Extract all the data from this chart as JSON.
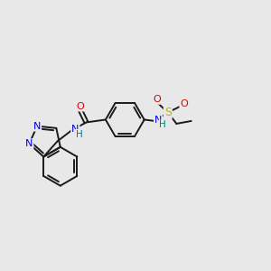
{
  "bg_color": "#e8e8e8",
  "bond_color": "#1a1a1a",
  "n_color": "#0000ee",
  "o_color": "#dd0000",
  "s_color": "#bbbb00",
  "nh_color": "#008080",
  "lw": 1.4,
  "figsize": [
    3.0,
    3.0
  ],
  "dpi": 100,
  "xlim": [
    0,
    10
  ],
  "ylim": [
    0,
    10
  ]
}
